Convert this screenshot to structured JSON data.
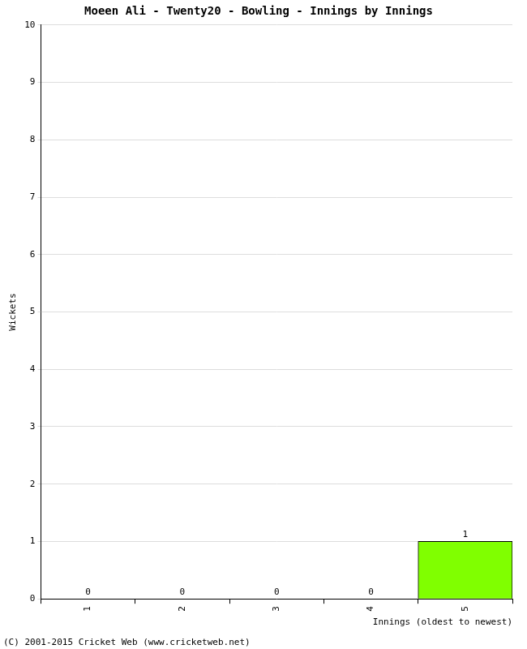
{
  "chart_data": {
    "type": "bar",
    "title": "Moeen Ali - Twenty20 - Bowling - Innings by Innings",
    "x_label": "Innings (oldest to newest)",
    "y_label": "Wickets",
    "categories": [
      "1",
      "2",
      "3",
      "4",
      "5"
    ],
    "values": [
      0,
      0,
      0,
      0,
      1
    ],
    "color": "#80ff00",
    "ylim": [
      0,
      10
    ],
    "yticks": [
      0,
      1,
      2,
      3,
      4,
      5,
      6,
      7,
      8,
      9,
      10
    ],
    "grid": true,
    "data_labels": true,
    "annotations": [
      "(C) 2001-2015 Cricket Web (www.cricketweb.net)"
    ]
  }
}
